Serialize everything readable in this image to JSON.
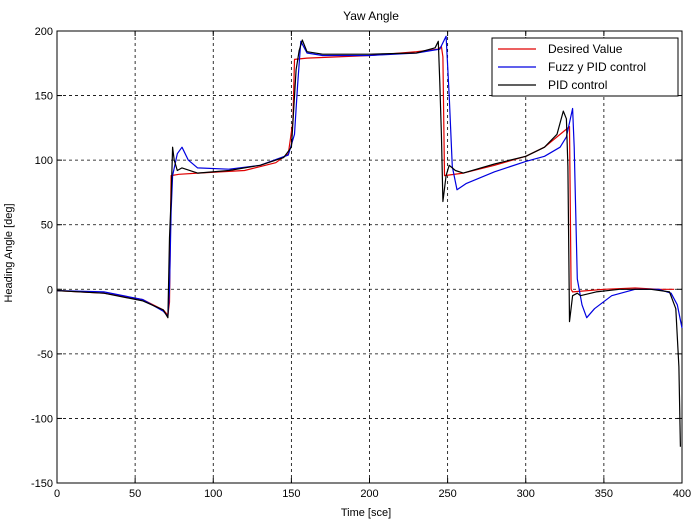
{
  "chart_data": {
    "type": "line",
    "title": "Yaw Angle",
    "xlabel": "Time [sce]",
    "ylabel": "Heading Angle [deg]",
    "xlim": [
      0,
      400
    ],
    "ylim": [
      -150,
      200
    ],
    "xticks": [
      0,
      50,
      100,
      150,
      200,
      250,
      300,
      350,
      400
    ],
    "yticks": [
      -150,
      -100,
      -50,
      0,
      50,
      100,
      150,
      200
    ],
    "grid": true,
    "grid_style": "dashed",
    "legend_position": "top-right",
    "series": [
      {
        "name": "Desired Value",
        "color": "#e00000",
        "points": [
          [
            0,
            -1
          ],
          [
            30,
            -3
          ],
          [
            55,
            -8
          ],
          [
            68,
            -16
          ],
          [
            71,
            -20
          ],
          [
            72,
            -10
          ],
          [
            73,
            88
          ],
          [
            78,
            89
          ],
          [
            90,
            90
          ],
          [
            120,
            92
          ],
          [
            140,
            98
          ],
          [
            148,
            105
          ],
          [
            151,
            130
          ],
          [
            152,
            178
          ],
          [
            160,
            179
          ],
          [
            200,
            181
          ],
          [
            230,
            184
          ],
          [
            244,
            186
          ],
          [
            246,
            188
          ],
          [
            247,
            180
          ],
          [
            248,
            88
          ],
          [
            260,
            90
          ],
          [
            280,
            96
          ],
          [
            300,
            103
          ],
          [
            312,
            110
          ],
          [
            320,
            118
          ],
          [
            328,
            126
          ],
          [
            329,
            0
          ],
          [
            330,
            -2
          ],
          [
            350,
            0
          ],
          [
            370,
            1
          ],
          [
            385,
            0
          ],
          [
            395,
            0
          ]
        ]
      },
      {
        "name": "Fuzz y PID control",
        "color": "#0000e0",
        "points": [
          [
            0,
            -1
          ],
          [
            30,
            -2
          ],
          [
            55,
            -8
          ],
          [
            68,
            -17
          ],
          [
            71,
            -21
          ],
          [
            72,
            0
          ],
          [
            73,
            60
          ],
          [
            74,
            88
          ],
          [
            77,
            105
          ],
          [
            80,
            110
          ],
          [
            84,
            100
          ],
          [
            90,
            94
          ],
          [
            110,
            93
          ],
          [
            130,
            96
          ],
          [
            148,
            104
          ],
          [
            152,
            120
          ],
          [
            154,
            158
          ],
          [
            156,
            192
          ],
          [
            160,
            183
          ],
          [
            170,
            181
          ],
          [
            200,
            181
          ],
          [
            230,
            183
          ],
          [
            245,
            186
          ],
          [
            249,
            196
          ],
          [
            251,
            150
          ],
          [
            253,
            95
          ],
          [
            256,
            77
          ],
          [
            262,
            82
          ],
          [
            280,
            91
          ],
          [
            300,
            99
          ],
          [
            312,
            103
          ],
          [
            322,
            110
          ],
          [
            326,
            118
          ],
          [
            330,
            140
          ],
          [
            331,
            110
          ],
          [
            333,
            8
          ],
          [
            336,
            -12
          ],
          [
            339,
            -22
          ],
          [
            344,
            -15
          ],
          [
            355,
            -5
          ],
          [
            370,
            0
          ],
          [
            385,
            0
          ],
          [
            393,
            -3
          ],
          [
            397,
            -12
          ],
          [
            400,
            -30
          ]
        ]
      },
      {
        "name": "PID control",
        "color": "#000000",
        "points": [
          [
            0,
            -1
          ],
          [
            30,
            -3
          ],
          [
            55,
            -9
          ],
          [
            68,
            -16
          ],
          [
            71,
            -22
          ],
          [
            72,
            40
          ],
          [
            73,
            70
          ],
          [
            74,
            110
          ],
          [
            75,
            100
          ],
          [
            77,
            92
          ],
          [
            80,
            94
          ],
          [
            90,
            90
          ],
          [
            110,
            92
          ],
          [
            130,
            96
          ],
          [
            145,
            102
          ],
          [
            150,
            110
          ],
          [
            153,
            170
          ],
          [
            155,
            185
          ],
          [
            157,
            193
          ],
          [
            160,
            184
          ],
          [
            170,
            182
          ],
          [
            200,
            182
          ],
          [
            230,
            183
          ],
          [
            242,
            187
          ],
          [
            244,
            192
          ],
          [
            245,
            160
          ],
          [
            246,
            120
          ],
          [
            247,
            68
          ],
          [
            249,
            88
          ],
          [
            251,
            96
          ],
          [
            255,
            92
          ],
          [
            260,
            90
          ],
          [
            280,
            97
          ],
          [
            300,
            103
          ],
          [
            312,
            110
          ],
          [
            320,
            120
          ],
          [
            324,
            138
          ],
          [
            326,
            132
          ],
          [
            327,
            95
          ],
          [
            328,
            -25
          ],
          [
            330,
            -5
          ],
          [
            333,
            -3
          ],
          [
            335,
            -5
          ],
          [
            345,
            -2
          ],
          [
            360,
            0
          ],
          [
            380,
            0
          ],
          [
            392,
            -2
          ],
          [
            396,
            -15
          ],
          [
            398,
            -60
          ],
          [
            399,
            -122
          ]
        ]
      }
    ]
  }
}
